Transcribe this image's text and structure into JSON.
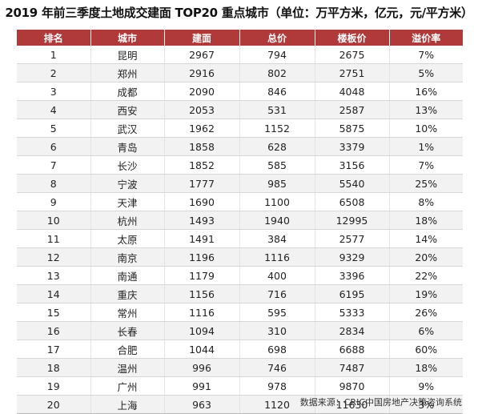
{
  "title": "2019 年前三季度土地成交建面 TOP20 重点城市（单位：万平方米，亿元，元/平方米）",
  "table": {
    "headers": [
      "排名",
      "城市",
      "建面",
      "总价",
      "楼板价",
      "溢价率"
    ],
    "rows": [
      [
        "1",
        "昆明",
        "2967",
        "794",
        "2675",
        "7%"
      ],
      [
        "2",
        "郑州",
        "2916",
        "802",
        "2751",
        "5%"
      ],
      [
        "3",
        "成都",
        "2090",
        "846",
        "4048",
        "16%"
      ],
      [
        "4",
        "西安",
        "2053",
        "531",
        "2587",
        "13%"
      ],
      [
        "5",
        "武汉",
        "1962",
        "1152",
        "5875",
        "10%"
      ],
      [
        "6",
        "青岛",
        "1858",
        "628",
        "3379",
        "1%"
      ],
      [
        "7",
        "长沙",
        "1852",
        "585",
        "3156",
        "7%"
      ],
      [
        "8",
        "宁波",
        "1777",
        "985",
        "5540",
        "25%"
      ],
      [
        "9",
        "天津",
        "1690",
        "1100",
        "6508",
        "8%"
      ],
      [
        "10",
        "杭州",
        "1493",
        "1940",
        "12995",
        "18%"
      ],
      [
        "11",
        "太原",
        "1491",
        "384",
        "2577",
        "14%"
      ],
      [
        "12",
        "南京",
        "1196",
        "1116",
        "9329",
        "20%"
      ],
      [
        "13",
        "南通",
        "1179",
        "400",
        "3396",
        "22%"
      ],
      [
        "14",
        "重庆",
        "1156",
        "716",
        "6195",
        "19%"
      ],
      [
        "15",
        "常州",
        "1116",
        "595",
        "5333",
        "26%"
      ],
      [
        "16",
        "长春",
        "1094",
        "310",
        "2834",
        "6%"
      ],
      [
        "17",
        "合肥",
        "1044",
        "698",
        "6688",
        "60%"
      ],
      [
        "18",
        "温州",
        "996",
        "746",
        "7487",
        "18%"
      ],
      [
        "19",
        "广州",
        "991",
        "978",
        "9870",
        "9%"
      ],
      [
        "20",
        "上海",
        "963",
        "1120",
        "11630",
        "3%"
      ]
    ]
  },
  "source": "数据来源：CRIC中国房地产决策咨询系统",
  "colors": {
    "header_bg": "#b03a3a",
    "header_text": "#ffffff",
    "alt_row_bg": "#f2f2f2"
  }
}
